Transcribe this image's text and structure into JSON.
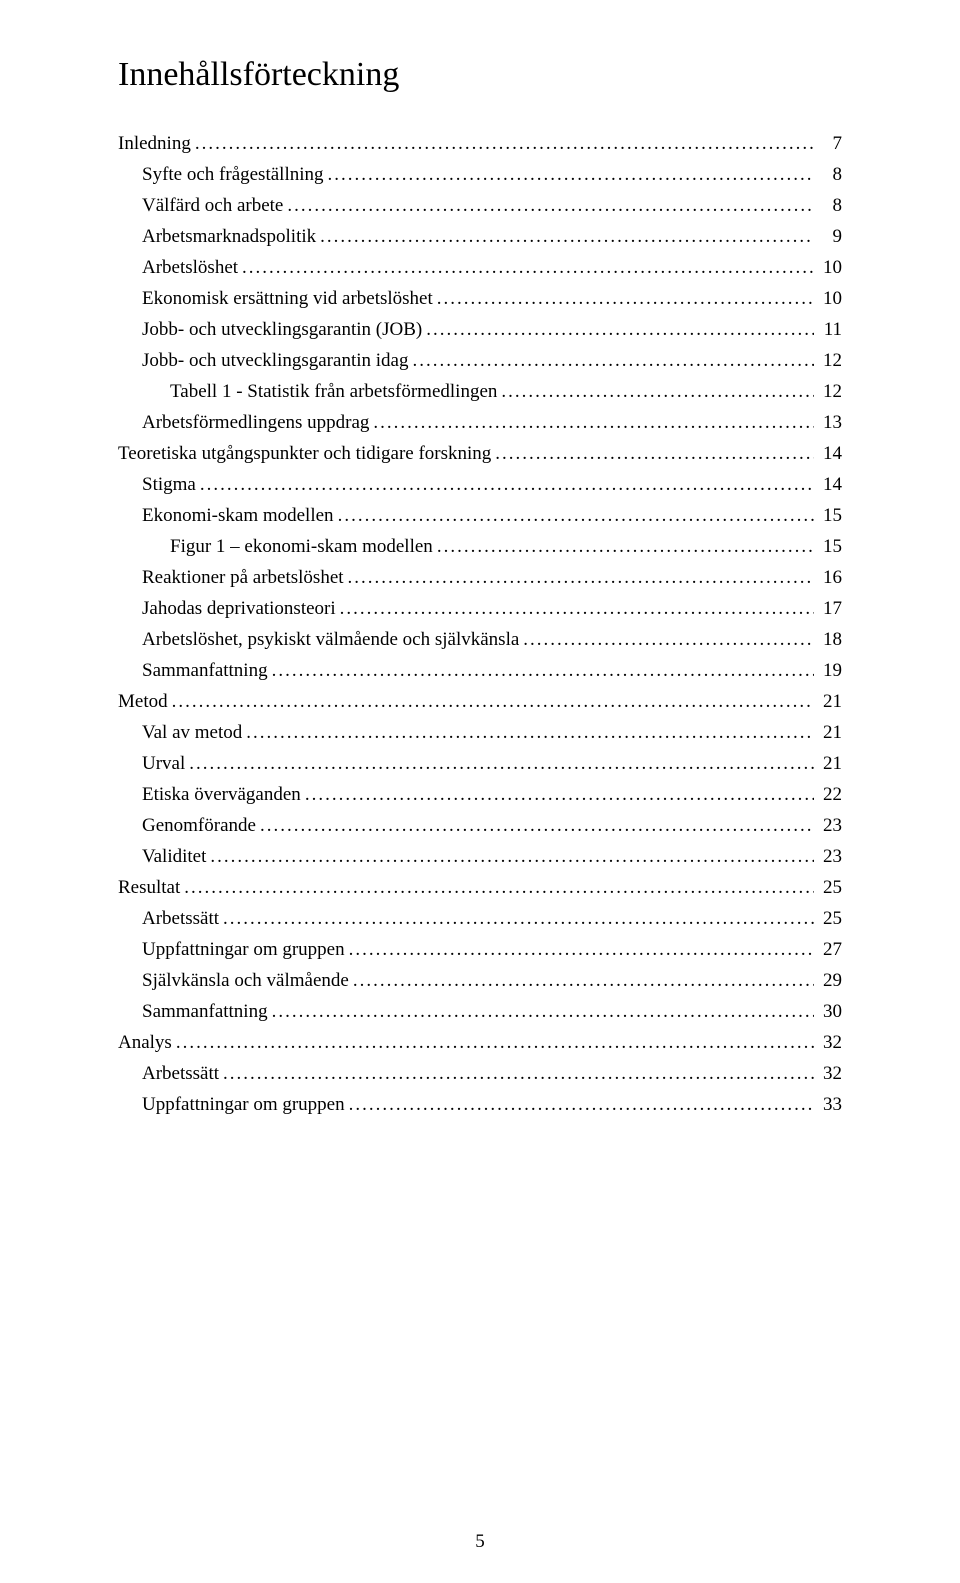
{
  "title": "Innehållsförteckning",
  "footer_page_number": "5",
  "dot_char": ".",
  "toc": [
    {
      "label": "Inledning",
      "page": "7",
      "level": 0
    },
    {
      "label": "Syfte och frågeställning",
      "page": "8",
      "level": 1
    },
    {
      "label": "Välfärd och arbete",
      "page": "8",
      "level": 1
    },
    {
      "label": "Arbetsmarknadspolitik",
      "page": "9",
      "level": 1
    },
    {
      "label": "Arbetslöshet",
      "page": "10",
      "level": 1
    },
    {
      "label": "Ekonomisk ersättning vid arbetslöshet",
      "page": "10",
      "level": 1
    },
    {
      "label": "Jobb- och utvecklingsgarantin (JOB)",
      "page": "11",
      "level": 1
    },
    {
      "label": "Jobb- och utvecklingsgarantin idag",
      "page": "12",
      "level": 1
    },
    {
      "label": "Tabell 1 - Statistik från arbetsförmedlingen",
      "page": "12",
      "level": 2
    },
    {
      "label": "Arbetsförmedlingens uppdrag",
      "page": "13",
      "level": 1
    },
    {
      "label": "Teoretiska utgångspunkter och tidigare forskning",
      "page": "14",
      "level": 0
    },
    {
      "label": "Stigma",
      "page": "14",
      "level": 1
    },
    {
      "label": "Ekonomi-skam modellen",
      "page": "15",
      "level": 1
    },
    {
      "label": "Figur 1 – ekonomi-skam modellen",
      "page": "15",
      "level": 2
    },
    {
      "label": "Reaktioner på arbetslöshet",
      "page": "16",
      "level": 1
    },
    {
      "label": "Jahodas deprivationsteori",
      "page": "17",
      "level": 1
    },
    {
      "label": "Arbetslöshet, psykiskt välmående och självkänsla",
      "page": "18",
      "level": 1
    },
    {
      "label": "Sammanfattning",
      "page": "19",
      "level": 1
    },
    {
      "label": "Metod",
      "page": "21",
      "level": 0
    },
    {
      "label": "Val av metod",
      "page": "21",
      "level": 1
    },
    {
      "label": "Urval",
      "page": "21",
      "level": 1
    },
    {
      "label": "Etiska överväganden",
      "page": "22",
      "level": 1
    },
    {
      "label": "Genomförande",
      "page": "23",
      "level": 1
    },
    {
      "label": "Validitet",
      "page": "23",
      "level": 1
    },
    {
      "label": "Resultat",
      "page": "25",
      "level": 0
    },
    {
      "label": "Arbetssätt",
      "page": "25",
      "level": 1
    },
    {
      "label": "Uppfattningar om gruppen",
      "page": "27",
      "level": 1
    },
    {
      "label": "Självkänsla och välmående",
      "page": "29",
      "level": 1
    },
    {
      "label": "Sammanfattning",
      "page": "30",
      "level": 1
    },
    {
      "label": "Analys",
      "page": "32",
      "level": 0
    },
    {
      "label": "Arbetssätt",
      "page": "32",
      "level": 1
    },
    {
      "label": "Uppfattningar om gruppen",
      "page": "33",
      "level": 1
    }
  ]
}
